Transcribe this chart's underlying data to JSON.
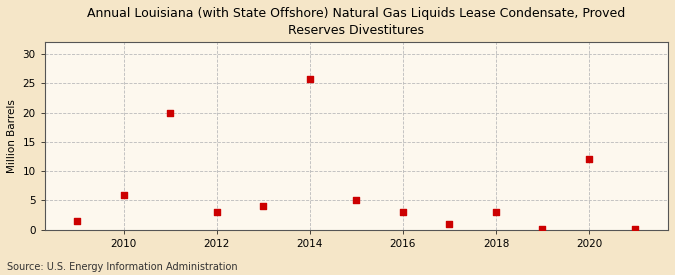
{
  "title": "Annual Louisiana (with State Offshore) Natural Gas Liquids Lease Condensate, Proved\nReserves Divestitures",
  "ylabel": "Million Barrels",
  "source": "Source: U.S. Energy Information Administration",
  "years": [
    2009,
    2010,
    2011,
    2012,
    2013,
    2014,
    2015,
    2016,
    2017,
    2018,
    2019,
    2020,
    2021
  ],
  "values": [
    1.5,
    6.0,
    20.0,
    3.0,
    4.0,
    25.7,
    5.0,
    3.0,
    1.0,
    3.0,
    0.2,
    12.0,
    0.2
  ],
  "marker_color": "#cc0000",
  "marker": "s",
  "marker_size": 4,
  "xlim": [
    2008.3,
    2021.7
  ],
  "ylim": [
    0,
    32
  ],
  "yticks": [
    0,
    5,
    10,
    15,
    20,
    25,
    30
  ],
  "xticks": [
    2010,
    2012,
    2014,
    2016,
    2018,
    2020
  ],
  "bg_color": "#f5e6c8",
  "plot_bg_color": "#fdf8ee",
  "grid_color": "#bbbbbb",
  "title_fontsize": 9,
  "label_fontsize": 7.5,
  "tick_fontsize": 7.5,
  "source_fontsize": 7
}
